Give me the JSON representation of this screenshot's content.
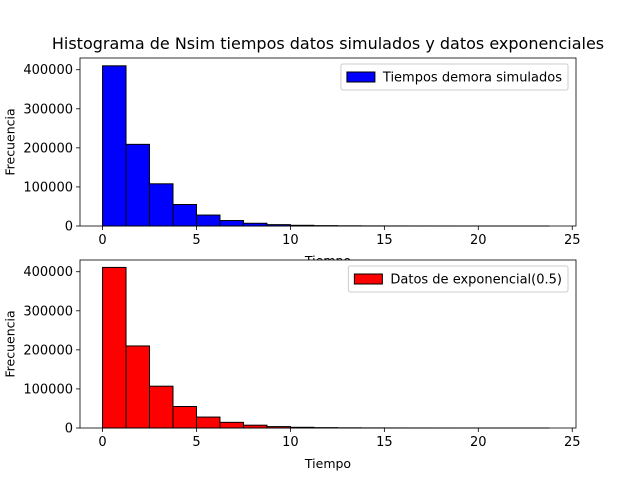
{
  "figure": {
    "title": "Histograma de Nsim tiempos datos simulados y datos exponenciales"
  },
  "chart_data": [
    {
      "type": "bar",
      "bin_width": 1.25,
      "bin_start": 0,
      "x": [
        0,
        1.25,
        2.5,
        3.75,
        5,
        6.25,
        7.5,
        8.75,
        10,
        11.25,
        12.5,
        13.75,
        15,
        16.25,
        17.5,
        18.75,
        20,
        21.25,
        22.5
      ],
      "values": [
        410000,
        209000,
        108000,
        55000,
        28000,
        14000,
        7000,
        3500,
        1800,
        900,
        450,
        220,
        110,
        50,
        25,
        12,
        6,
        3,
        2
      ],
      "xlim": [
        -1.2,
        25.2
      ],
      "ylim": [
        0,
        430000
      ],
      "xticks": [
        0,
        5,
        10,
        15,
        20,
        25
      ],
      "yticks": [
        0,
        100000,
        200000,
        300000,
        400000
      ],
      "xlabel": "Tiempo",
      "ylabel": "Frecuencia",
      "legend": {
        "label": "Tiempos demora simulados",
        "placement": "upper right"
      },
      "color": "#0000ff",
      "edgecolor": "#000000"
    },
    {
      "type": "bar",
      "bin_width": 1.25,
      "bin_start": 0,
      "x": [
        0,
        1.25,
        2.5,
        3.75,
        5,
        6.25,
        7.5,
        8.75,
        10,
        11.25,
        12.5,
        13.75,
        15,
        16.25,
        17.5,
        18.75,
        20,
        21.25,
        22.5
      ],
      "values": [
        411000,
        210000,
        107000,
        55000,
        28000,
        14500,
        7200,
        3600,
        1800,
        900,
        450,
        220,
        110,
        50,
        25,
        12,
        6,
        3,
        2
      ],
      "xlim": [
        -1.2,
        25.2
      ],
      "ylim": [
        0,
        430000
      ],
      "xticks": [
        0,
        5,
        10,
        15,
        20,
        25
      ],
      "yticks": [
        0,
        100000,
        200000,
        300000,
        400000
      ],
      "xlabel": "Tiempo",
      "ylabel": "Frecuencia",
      "legend": {
        "label": "Datos de exponencial(0.5)",
        "placement": "upper right"
      },
      "color": "#ff0000",
      "edgecolor": "#000000"
    }
  ]
}
